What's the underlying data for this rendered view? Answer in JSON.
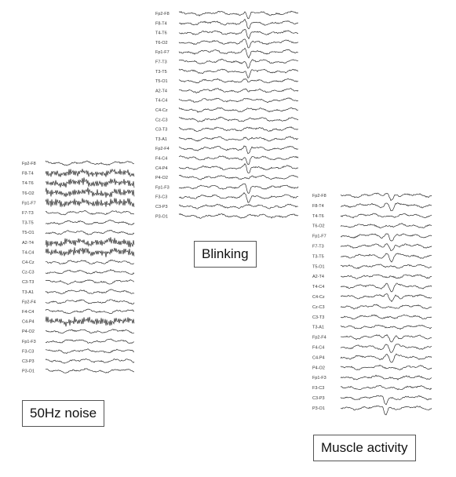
{
  "panels": [
    {
      "id": "blinking",
      "caption": "Blinking",
      "channels": [
        "Fp2-F8",
        "F8-T4",
        "T4-T6",
        "T6-O2",
        "Fp1-F7",
        "F7-T3",
        "T3-T5",
        "T5-O1",
        "A2-T4",
        "T4-C4",
        "C4-Cz",
        "Cz-C3",
        "C3-T3",
        "T3-A1",
        "Fp2-F4",
        "F4-C4",
        "C4-P4",
        "P4-O2",
        "Fp1-F3",
        "F3-C3",
        "C3-P3",
        "P3-O1"
      ]
    },
    {
      "id": "noise",
      "caption": "50Hz noise",
      "channels": [
        "Fp2-F8",
        "F8-T4",
        "T4-T6",
        "T6-O2",
        "Fp1-F7",
        "F7-T3",
        "T3-T5",
        "T5-O1",
        "A2-T4",
        "T4-C4",
        "C4-Cz",
        "Cz-C3",
        "C3-T3",
        "T3-A1",
        "Fp2-F4",
        "F4-C4",
        "C4-P4",
        "P4-O2",
        "Fp1-F3",
        "F3-C3",
        "C3-P3",
        "P3-O1"
      ]
    },
    {
      "id": "muscle",
      "caption": "Muscle activity",
      "channels": [
        "Fp2-F8",
        "F8-T4",
        "T4-T6",
        "T6-O2",
        "Fp1-F7",
        "F7-T3",
        "T3-T5",
        "T5-O1",
        "A2-T4",
        "T4-C4",
        "C4-Cz",
        "Cz-C3",
        "C3-T3",
        "T3-A1",
        "Fp2-F4",
        "F4-C4",
        "C4-P4",
        "P4-O2",
        "Fp1-F3",
        "F3-C3",
        "C3-P3",
        "P3-O1"
      ]
    }
  ]
}
